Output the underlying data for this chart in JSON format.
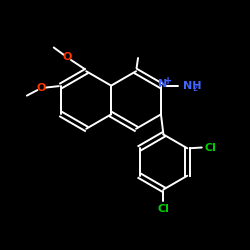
{
  "background_color": "#000000",
  "bond_color": "#ffffff",
  "atom_colors": {
    "N": "#4466ff",
    "O": "#ff3300",
    "Cl": "#00cc00"
  },
  "figsize": [
    2.5,
    2.5
  ],
  "dpi": 100
}
